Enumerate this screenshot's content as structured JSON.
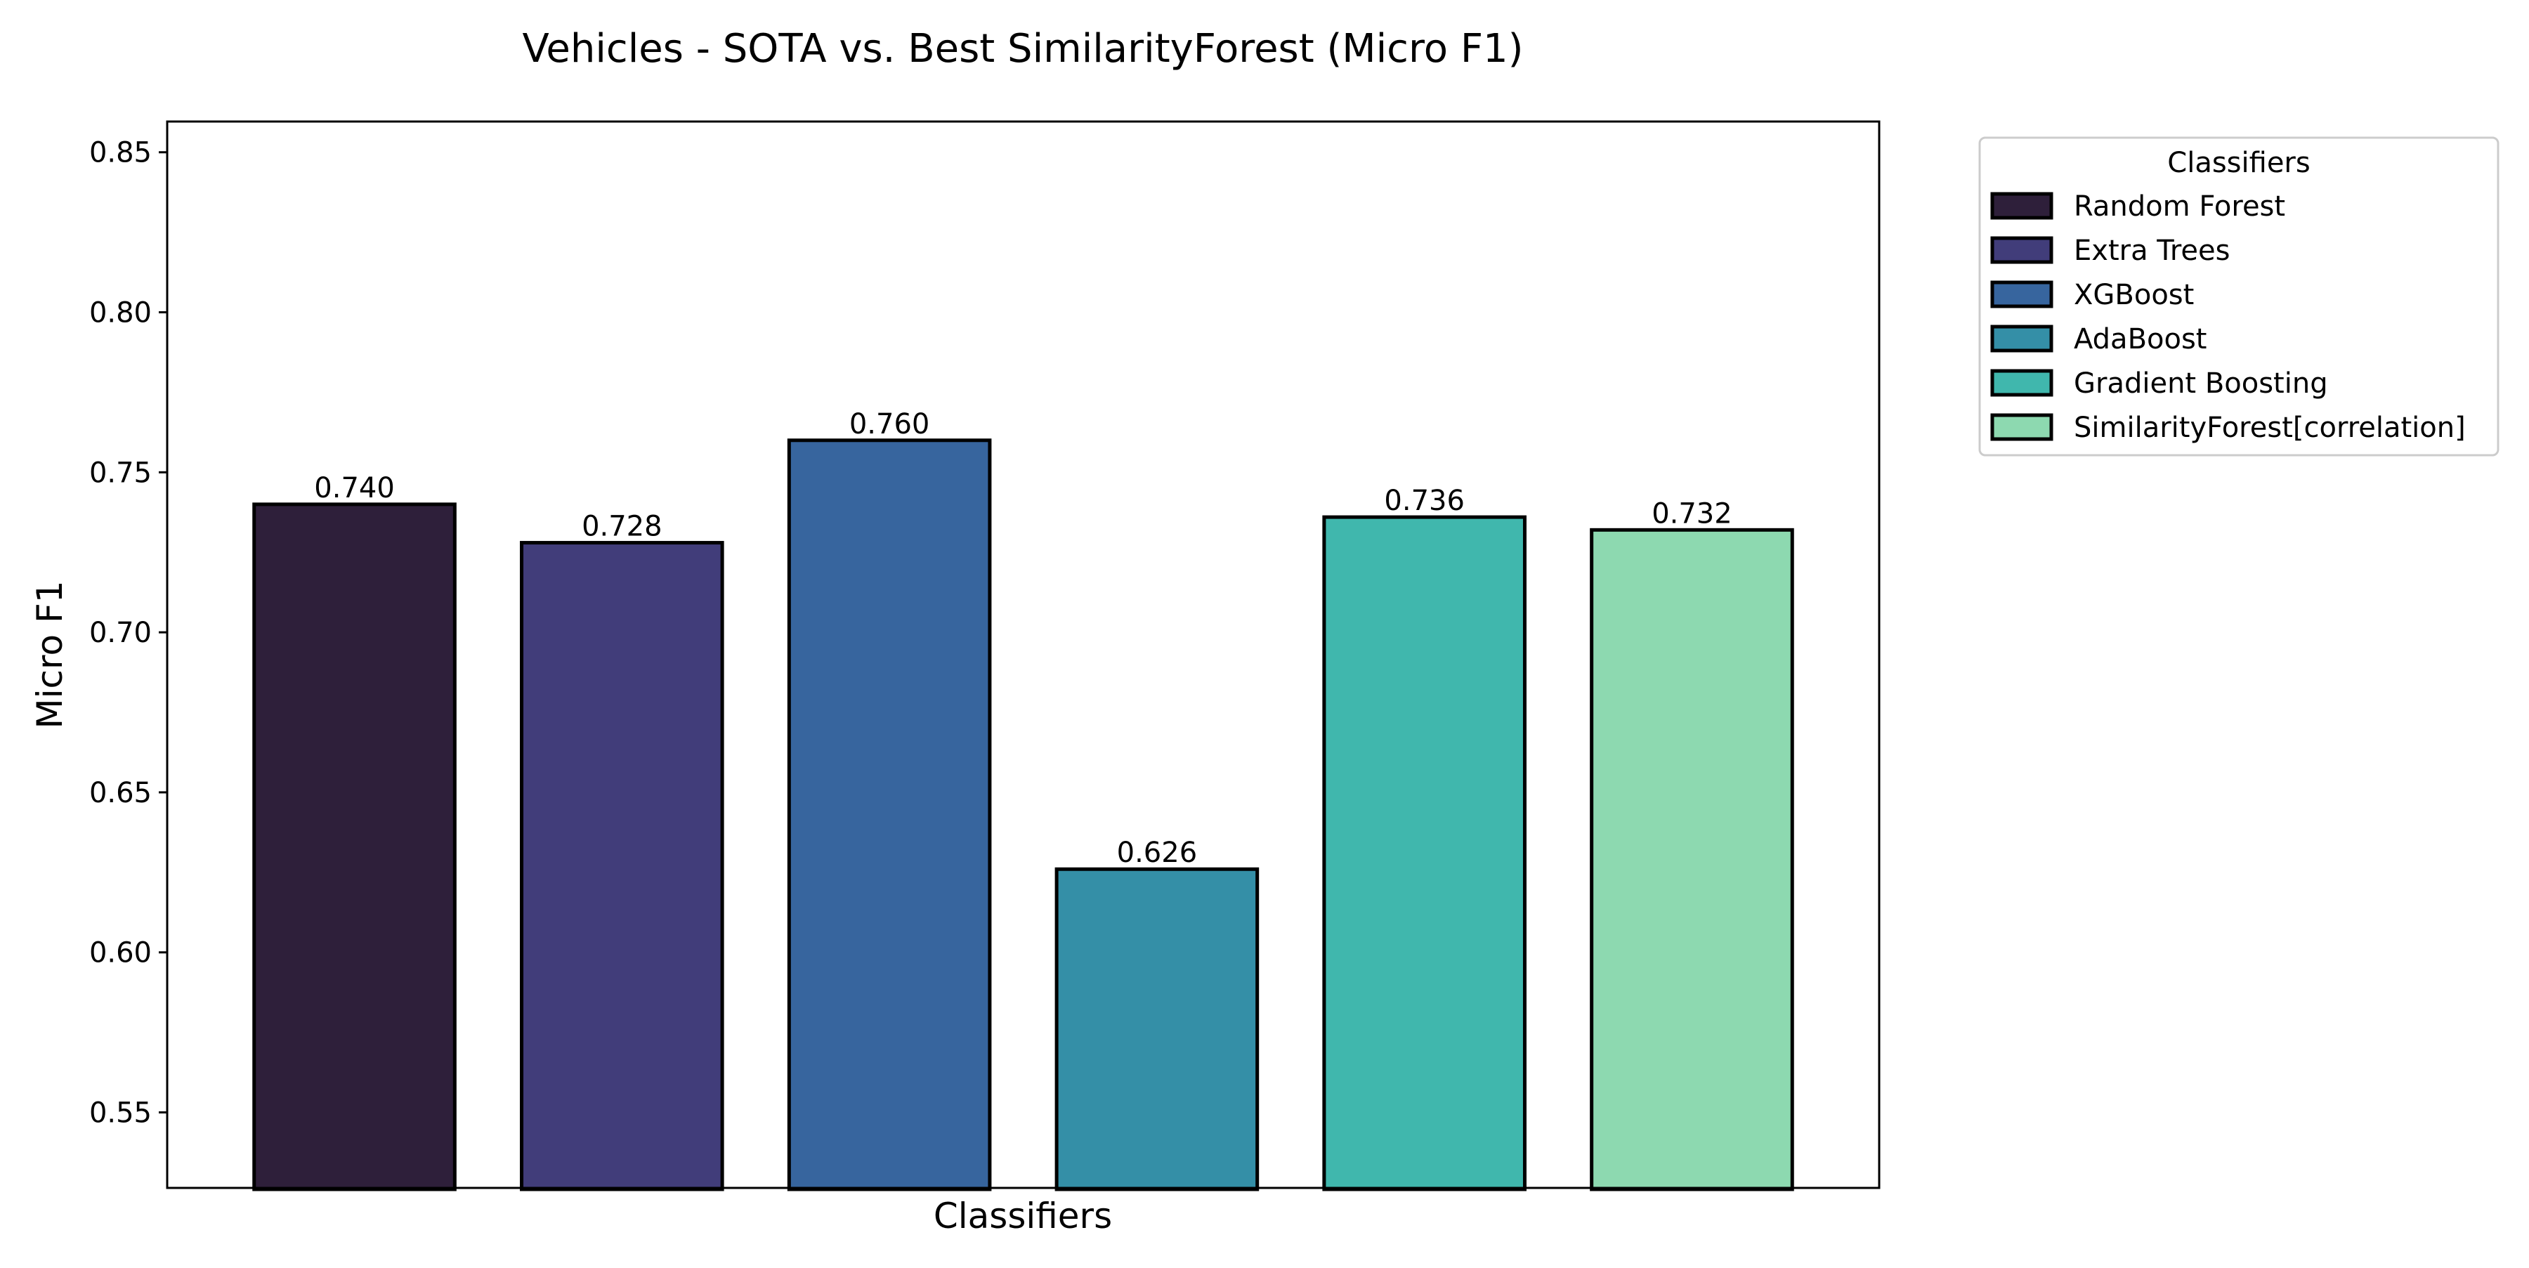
{
  "chart_data": {
    "type": "bar",
    "title": "Vehicles - SOTA vs. Best SimilarityForest (Micro F1)",
    "xlabel": "Classifiers",
    "ylabel": "Micro F1",
    "ylim": [
      0.5264,
      0.8596
    ],
    "yticks": [
      "0.55",
      "0.60",
      "0.65",
      "0.70",
      "0.75",
      "0.80",
      "0.85"
    ],
    "categories": [
      "Random Forest",
      "Extra Trees",
      "XGBoost",
      "AdaBoost",
      "Gradient Boosting",
      "SimilarityForest[correlation]"
    ],
    "values": [
      0.74,
      0.728,
      0.76,
      0.626,
      0.736,
      0.732
    ],
    "value_labels": [
      "0.740",
      "0.728",
      "0.760",
      "0.626",
      "0.736",
      "0.732"
    ],
    "colors": [
      "#2e1f3a",
      "#413d7a",
      "#37659e",
      "#348fa7",
      "#40b7ad",
      "#8dd9b0"
    ],
    "edge_color": "#000000",
    "legend": {
      "title": "Classifiers",
      "placement": "outside-right-top",
      "entries": [
        "Random Forest",
        "Extra Trees",
        "XGBoost",
        "AdaBoost",
        "Gradient Boosting",
        "SimilarityForest[correlation]"
      ]
    },
    "grid": false
  }
}
